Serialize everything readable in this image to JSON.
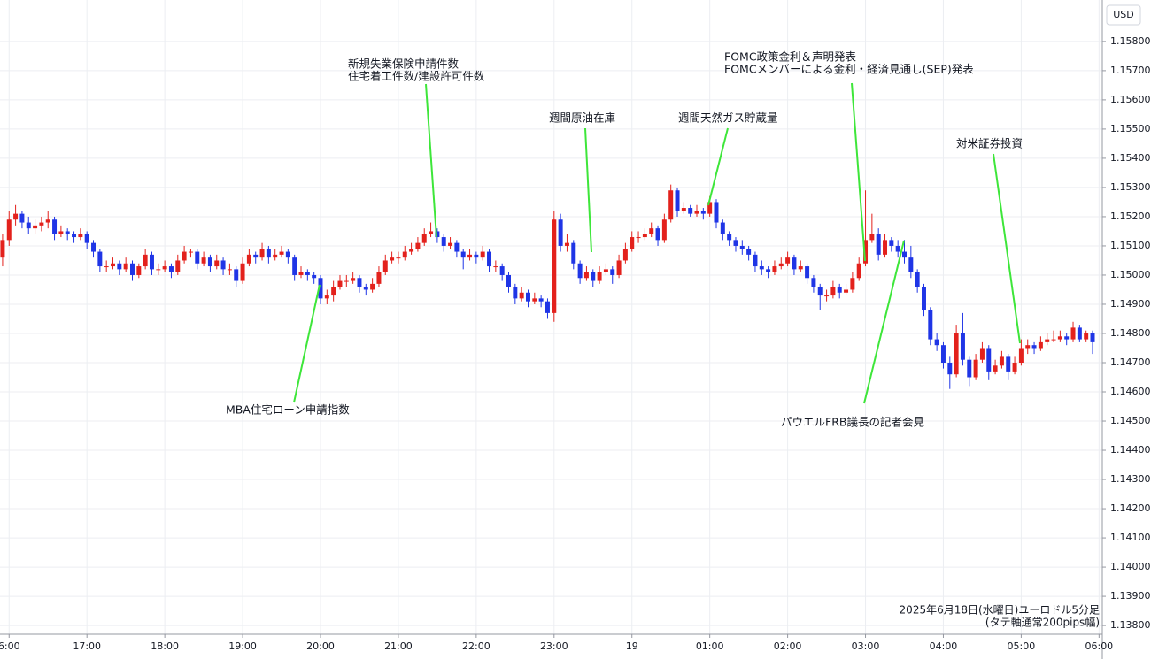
{
  "chart_data": {
    "type": "candlestick",
    "currency": "USD",
    "up_color": "#e3211c",
    "down_color": "#1f35e6",
    "grid": true,
    "note": [
      "2025年6月18日(水曜日)ユーロドル5分足",
      "(タテ軸通常200pips幅)"
    ],
    "annotations": [
      [
        "新規失業保険申請件数",
        "住宅着工件数/建設許可件数"
      ],
      [
        "週間原油在庫"
      ],
      [
        "週間天然ガス貯蔵量"
      ],
      [
        "FOMC政策金利＆声明発表",
        "FOMCメンバーによる金利・経済見通し(SEP)発表"
      ],
      [
        "対米証券投資"
      ],
      [
        "MBA住宅ローン申請指数"
      ],
      [
        "パウエルFRB議長の記者会見"
      ]
    ],
    "xlim": [
      -0.4,
      169.5
    ],
    "xticks": [
      {
        "value": 1,
        "label": "6:00"
      },
      {
        "value": 13,
        "label": "17:00"
      },
      {
        "value": 25,
        "label": "18:00"
      },
      {
        "value": 37,
        "label": "19:00"
      },
      {
        "value": 49,
        "label": "20:00"
      },
      {
        "value": 61,
        "label": "21:00"
      },
      {
        "value": 73,
        "label": "22:00"
      },
      {
        "value": 85,
        "label": "23:00"
      },
      {
        "value": 97,
        "label": "19"
      },
      {
        "value": 109,
        "label": "01:00"
      },
      {
        "value": 121,
        "label": "02:00"
      },
      {
        "value": 133,
        "label": "03:00"
      },
      {
        "value": 145,
        "label": "04:00"
      },
      {
        "value": 157,
        "label": "05:00"
      },
      {
        "value": 169,
        "label": "06:00"
      }
    ],
    "ylim": [
      1.1377,
      1.15942
    ],
    "yticks": [
      {
        "value": 1.138,
        "label": "1.13800"
      },
      {
        "value": 1.139,
        "label": "1.13900"
      },
      {
        "value": 1.14,
        "label": "1.14000"
      },
      {
        "value": 1.141,
        "label": "1.14100"
      },
      {
        "value": 1.142,
        "label": "1.14200"
      },
      {
        "value": 1.143,
        "label": "1.14300"
      },
      {
        "value": 1.144,
        "label": "1.14400"
      },
      {
        "value": 1.145,
        "label": "1.14500"
      },
      {
        "value": 1.146,
        "label": "1.14600"
      },
      {
        "value": 1.147,
        "label": "1.14700"
      },
      {
        "value": 1.148,
        "label": "1.14800"
      },
      {
        "value": 1.149,
        "label": "1.14900"
      },
      {
        "value": 1.15,
        "label": "1.15000"
      },
      {
        "value": 1.151,
        "label": "1.15100"
      },
      {
        "value": 1.152,
        "label": "1.15200"
      },
      {
        "value": 1.153,
        "label": "1.15300"
      },
      {
        "value": 1.154,
        "label": "1.15400"
      },
      {
        "value": 1.155,
        "label": "1.15500"
      },
      {
        "value": 1.156,
        "label": "1.15600"
      },
      {
        "value": 1.157,
        "label": "1.15700"
      },
      {
        "value": 1.158,
        "label": "1.15800"
      }
    ],
    "ohlc": [
      [
        1.1506,
        1.1514,
        1.1503,
        1.1512
      ],
      [
        1.1512,
        1.1522,
        1.151,
        1.1519
      ],
      [
        1.1519,
        1.1524,
        1.1517,
        1.1521
      ],
      [
        1.1521,
        1.1522,
        1.1516,
        1.1518
      ],
      [
        1.1518,
        1.152,
        1.1514,
        1.1516
      ],
      [
        1.1516,
        1.1519,
        1.1514,
        1.1517
      ],
      [
        1.1517,
        1.152,
        1.1515,
        1.1518
      ],
      [
        1.1518,
        1.1522,
        1.1516,
        1.1519
      ],
      [
        1.1519,
        1.152,
        1.1512,
        1.1514
      ],
      [
        1.1514,
        1.1517,
        1.1513,
        1.1515
      ],
      [
        1.1515,
        1.1516,
        1.1512,
        1.1514
      ],
      [
        1.1514,
        1.1515,
        1.1511,
        1.1513
      ],
      [
        1.1513,
        1.1516,
        1.1512,
        1.1514
      ],
      [
        1.1514,
        1.1515,
        1.1509,
        1.1511
      ],
      [
        1.1511,
        1.1512,
        1.1506,
        1.1508
      ],
      [
        1.1508,
        1.1509,
        1.1501,
        1.1503
      ],
      [
        1.1503,
        1.1505,
        1.1501,
        1.1503
      ],
      [
        1.1503,
        1.1506,
        1.1502,
        1.1504
      ],
      [
        1.1504,
        1.1505,
        1.15,
        1.1502
      ],
      [
        1.1502,
        1.1506,
        1.1501,
        1.1504
      ],
      [
        1.1504,
        1.1505,
        1.1498,
        1.15
      ],
      [
        1.15,
        1.1504,
        1.1499,
        1.1503
      ],
      [
        1.1503,
        1.1509,
        1.1502,
        1.1507
      ],
      [
        1.1507,
        1.1508,
        1.15,
        1.1502
      ],
      [
        1.1502,
        1.1504,
        1.15,
        1.1502
      ],
      [
        1.1502,
        1.1505,
        1.1501,
        1.1503
      ],
      [
        1.1503,
        1.1504,
        1.1499,
        1.1501
      ],
      [
        1.1501,
        1.1507,
        1.15,
        1.1505
      ],
      [
        1.1505,
        1.151,
        1.1504,
        1.1508
      ],
      [
        1.1508,
        1.1509,
        1.1506,
        1.1508
      ],
      [
        1.1508,
        1.1509,
        1.1502,
        1.1504
      ],
      [
        1.1504,
        1.1508,
        1.1503,
        1.1506
      ],
      [
        1.1506,
        1.1507,
        1.1501,
        1.1503
      ],
      [
        1.1503,
        1.1507,
        1.1502,
        1.1505
      ],
      [
        1.1505,
        1.1506,
        1.15,
        1.1502
      ],
      [
        1.1502,
        1.1504,
        1.15,
        1.1502
      ],
      [
        1.1502,
        1.1503,
        1.1496,
        1.1498
      ],
      [
        1.1498,
        1.1506,
        1.1497,
        1.1504
      ],
      [
        1.1504,
        1.1509,
        1.1503,
        1.1507
      ],
      [
        1.1507,
        1.1508,
        1.1504,
        1.1506
      ],
      [
        1.1506,
        1.1511,
        1.1505,
        1.1509
      ],
      [
        1.1509,
        1.151,
        1.1504,
        1.1506
      ],
      [
        1.1506,
        1.1509,
        1.1505,
        1.1507
      ],
      [
        1.1507,
        1.151,
        1.1506,
        1.1508
      ],
      [
        1.1508,
        1.1509,
        1.1504,
        1.1506
      ],
      [
        1.1506,
        1.1507,
        1.1498,
        1.15
      ],
      [
        1.15,
        1.1503,
        1.1499,
        1.1501
      ],
      [
        1.1501,
        1.1502,
        1.1498,
        1.15
      ],
      [
        1.15,
        1.1501,
        1.1497,
        1.1499
      ],
      [
        1.1499,
        1.15,
        1.149,
        1.1492
      ],
      [
        1.1492,
        1.1495,
        1.149,
        1.1493
      ],
      [
        1.1493,
        1.1498,
        1.1491,
        1.1496
      ],
      [
        1.1496,
        1.15,
        1.1495,
        1.1498
      ],
      [
        1.1498,
        1.15,
        1.1496,
        1.1498
      ],
      [
        1.1498,
        1.1501,
        1.1497,
        1.1499
      ],
      [
        1.1499,
        1.15,
        1.1494,
        1.1496
      ],
      [
        1.1496,
        1.1497,
        1.1493,
        1.1495
      ],
      [
        1.1495,
        1.1499,
        1.1494,
        1.1497
      ],
      [
        1.1497,
        1.1503,
        1.1496,
        1.1501
      ],
      [
        1.1501,
        1.1507,
        1.15,
        1.1505
      ],
      [
        1.1505,
        1.1508,
        1.1504,
        1.1506
      ],
      [
        1.1506,
        1.1508,
        1.1504,
        1.1506
      ],
      [
        1.1506,
        1.151,
        1.1505,
        1.1508
      ],
      [
        1.1508,
        1.1511,
        1.1507,
        1.1509
      ],
      [
        1.1509,
        1.1513,
        1.1508,
        1.1511
      ],
      [
        1.1511,
        1.1516,
        1.151,
        1.1514
      ],
      [
        1.1514,
        1.1518,
        1.1513,
        1.1515
      ],
      [
        1.1515,
        1.1516,
        1.1511,
        1.1513
      ],
      [
        1.1513,
        1.1514,
        1.1508,
        1.151
      ],
      [
        1.151,
        1.1513,
        1.1509,
        1.1511
      ],
      [
        1.1511,
        1.1512,
        1.1506,
        1.1508
      ],
      [
        1.1508,
        1.1509,
        1.1502,
        1.1506
      ],
      [
        1.1506,
        1.1509,
        1.1505,
        1.1507
      ],
      [
        1.1507,
        1.1508,
        1.1504,
        1.1506
      ],
      [
        1.1506,
        1.151,
        1.1505,
        1.1508
      ],
      [
        1.1508,
        1.1509,
        1.1501,
        1.1503
      ],
      [
        1.1503,
        1.1505,
        1.1501,
        1.1503
      ],
      [
        1.1503,
        1.1504,
        1.1498,
        1.15
      ],
      [
        1.15,
        1.1501,
        1.1494,
        1.1496
      ],
      [
        1.1496,
        1.1497,
        1.149,
        1.1492
      ],
      [
        1.1492,
        1.1496,
        1.1491,
        1.1494
      ],
      [
        1.1494,
        1.1495,
        1.1489,
        1.1491
      ],
      [
        1.1491,
        1.1494,
        1.149,
        1.1492
      ],
      [
        1.1492,
        1.1493,
        1.1489,
        1.1491
      ],
      [
        1.1491,
        1.1492,
        1.1485,
        1.1487
      ],
      [
        1.1487,
        1.1522,
        1.1484,
        1.1519
      ],
      [
        1.1519,
        1.1521,
        1.1508,
        1.151
      ],
      [
        1.151,
        1.1514,
        1.1508,
        1.1511
      ],
      [
        1.1511,
        1.1512,
        1.1502,
        1.1504
      ],
      [
        1.1504,
        1.1505,
        1.1497,
        1.1499
      ],
      [
        1.1499,
        1.1503,
        1.1498,
        1.1501
      ],
      [
        1.1501,
        1.1502,
        1.1496,
        1.1498
      ],
      [
        1.1498,
        1.1503,
        1.1497,
        1.1501
      ],
      [
        1.1501,
        1.1504,
        1.15,
        1.1502
      ],
      [
        1.1502,
        1.1503,
        1.1497,
        1.15
      ],
      [
        1.15,
        1.1507,
        1.1499,
        1.1505
      ],
      [
        1.1505,
        1.1511,
        1.1504,
        1.1509
      ],
      [
        1.1509,
        1.1515,
        1.1508,
        1.1513
      ],
      [
        1.1513,
        1.1515,
        1.1511,
        1.1513
      ],
      [
        1.1513,
        1.1516,
        1.1512,
        1.1514
      ],
      [
        1.1514,
        1.1518,
        1.1513,
        1.1516
      ],
      [
        1.1516,
        1.1517,
        1.151,
        1.1512
      ],
      [
        1.1512,
        1.1521,
        1.1511,
        1.1519
      ],
      [
        1.1519,
        1.1531,
        1.1518,
        1.1529
      ],
      [
        1.1529,
        1.153,
        1.152,
        1.1522
      ],
      [
        1.1522,
        1.1525,
        1.1521,
        1.1523
      ],
      [
        1.1523,
        1.1524,
        1.152,
        1.1521
      ],
      [
        1.1521,
        1.1524,
        1.152,
        1.1522
      ],
      [
        1.1522,
        1.1523,
        1.1519,
        1.1521
      ],
      [
        1.1521,
        1.1527,
        1.152,
        1.1525
      ],
      [
        1.1525,
        1.1526,
        1.1516,
        1.1518
      ],
      [
        1.1518,
        1.1519,
        1.1512,
        1.1514
      ],
      [
        1.1514,
        1.1515,
        1.151,
        1.1512
      ],
      [
        1.1512,
        1.1513,
        1.1508,
        1.151
      ],
      [
        1.151,
        1.1512,
        1.1507,
        1.1509
      ],
      [
        1.1509,
        1.151,
        1.1505,
        1.1507
      ],
      [
        1.1507,
        1.1508,
        1.1501,
        1.1503
      ],
      [
        1.1503,
        1.1505,
        1.15,
        1.1502
      ],
      [
        1.1502,
        1.1503,
        1.1499,
        1.1501
      ],
      [
        1.1501,
        1.1505,
        1.15,
        1.1503
      ],
      [
        1.1503,
        1.1506,
        1.1502,
        1.1504
      ],
      [
        1.1504,
        1.1508,
        1.1503,
        1.1506
      ],
      [
        1.1506,
        1.1507,
        1.15,
        1.1502
      ],
      [
        1.1502,
        1.1505,
        1.1501,
        1.1503
      ],
      [
        1.1503,
        1.1504,
        1.1497,
        1.1499
      ],
      [
        1.1499,
        1.15,
        1.1494,
        1.1496
      ],
      [
        1.1496,
        1.1497,
        1.1488,
        1.1493
      ],
      [
        1.1493,
        1.1495,
        1.1491,
        1.1493
      ],
      [
        1.1493,
        1.1498,
        1.1492,
        1.1496
      ],
      [
        1.1496,
        1.1497,
        1.1492,
        1.1494
      ],
      [
        1.1494,
        1.1497,
        1.1493,
        1.1495
      ],
      [
        1.1495,
        1.1501,
        1.1494,
        1.1499
      ],
      [
        1.1499,
        1.1506,
        1.1498,
        1.1504
      ],
      [
        1.1504,
        1.1529,
        1.1503,
        1.1512
      ],
      [
        1.1512,
        1.1521,
        1.1511,
        1.1514
      ],
      [
        1.1514,
        1.1516,
        1.1505,
        1.1507
      ],
      [
        1.1507,
        1.1514,
        1.1506,
        1.1512
      ],
      [
        1.1512,
        1.1513,
        1.1508,
        1.151
      ],
      [
        1.151,
        1.1512,
        1.1506,
        1.1508
      ],
      [
        1.1508,
        1.1512,
        1.1504,
        1.1506
      ],
      [
        1.1506,
        1.151,
        1.1499,
        1.1501
      ],
      [
        1.1501,
        1.1502,
        1.1494,
        1.1496
      ],
      [
        1.1496,
        1.1497,
        1.1486,
        1.1488
      ],
      [
        1.1488,
        1.1489,
        1.1476,
        1.1478
      ],
      [
        1.1478,
        1.148,
        1.1474,
        1.1476
      ],
      [
        1.1476,
        1.1477,
        1.1468,
        1.147
      ],
      [
        1.147,
        1.1472,
        1.1461,
        1.1466
      ],
      [
        1.1466,
        1.1483,
        1.1465,
        1.148
      ],
      [
        1.148,
        1.1487,
        1.1469,
        1.1471
      ],
      [
        1.1471,
        1.1472,
        1.1462,
        1.1465
      ],
      [
        1.1465,
        1.1473,
        1.1464,
        1.1471
      ],
      [
        1.1471,
        1.1477,
        1.147,
        1.1475
      ],
      [
        1.1475,
        1.1476,
        1.1464,
        1.1467
      ],
      [
        1.1467,
        1.1471,
        1.1466,
        1.1469
      ],
      [
        1.1469,
        1.1474,
        1.1468,
        1.1472
      ],
      [
        1.1472,
        1.1473,
        1.1464,
        1.1467
      ],
      [
        1.1467,
        1.1472,
        1.1466,
        1.147
      ],
      [
        1.147,
        1.1478,
        1.1469,
        1.1475
      ],
      [
        1.1475,
        1.1478,
        1.1473,
        1.1476
      ],
      [
        1.1476,
        1.1477,
        1.1473,
        1.1475
      ],
      [
        1.1475,
        1.1479,
        1.1474,
        1.1477
      ],
      [
        1.1477,
        1.148,
        1.1476,
        1.1478
      ],
      [
        1.1478,
        1.1481,
        1.1477,
        1.1478
      ],
      [
        1.1478,
        1.1481,
        1.1477,
        1.1479
      ],
      [
        1.1479,
        1.148,
        1.1476,
        1.1478
      ],
      [
        1.1478,
        1.1484,
        1.1477,
        1.1482
      ],
      [
        1.1482,
        1.1483,
        1.1477,
        1.1478
      ],
      [
        1.1478,
        1.1481,
        1.1477,
        1.148
      ],
      [
        1.148,
        1.1481,
        1.1473,
        1.1477
      ]
    ]
  }
}
